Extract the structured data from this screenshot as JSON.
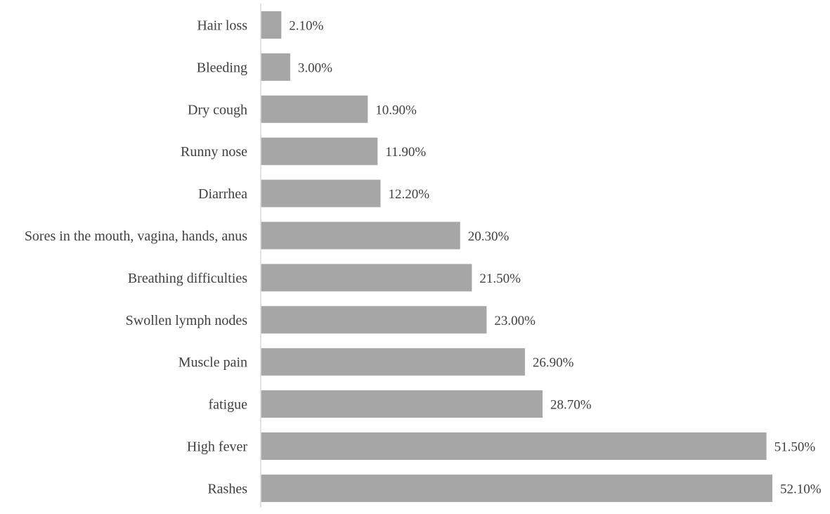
{
  "chart_data": {
    "type": "bar",
    "orientation": "horizontal",
    "title": "",
    "xlabel": "",
    "ylabel": "",
    "categories": [
      "Hair loss",
      "Bleeding",
      "Dry cough",
      "Runny nose",
      "Diarrhea",
      "Sores in the mouth, vagina, hands, anus",
      "Breathing difficulties",
      "Swollen lymph nodes",
      "Muscle pain",
      "fatigue",
      "High fever",
      "Rashes"
    ],
    "values": [
      2.1,
      3.0,
      10.9,
      11.9,
      12.2,
      20.3,
      21.5,
      23.0,
      26.9,
      28.7,
      51.5,
      52.1
    ],
    "data_labels": [
      "2.10%",
      "3.00%",
      "10.90%",
      "11.90%",
      "12.20%",
      "20.30%",
      "21.50%",
      "23.00%",
      "26.90%",
      "28.70%",
      "51.50%",
      "52.10%"
    ],
    "unit": "%",
    "xlim": [
      0,
      52.1
    ],
    "grid": false,
    "legend": "none",
    "bar_color": "#a6a6a6",
    "axis_color": "#d9d9d9",
    "text_color": "#404040"
  }
}
